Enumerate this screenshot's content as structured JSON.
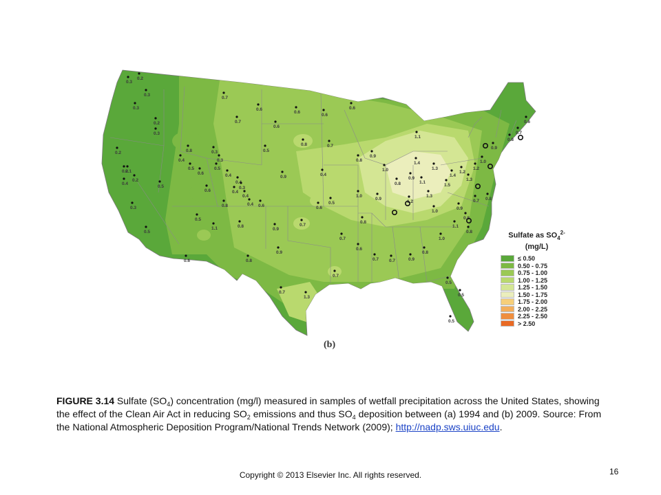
{
  "legend": {
    "title": "Sulfate as SO",
    "title_sup": "2-",
    "title_sub": "4",
    "units": "(mg/L)",
    "items": [
      {
        "label": "≤ 0.50",
        "color": "#5aa83a"
      },
      {
        "label": "0.50 - 0.75",
        "color": "#7db944"
      },
      {
        "label": "0.75 - 1.00",
        "color": "#9bc955"
      },
      {
        "label": "1.00 - 1.25",
        "color": "#b9d96e"
      },
      {
        "label": "1.25 - 1.50",
        "color": "#d4e694"
      },
      {
        "label": "1.50 - 1.75",
        "color": "#ebeebc"
      },
      {
        "label": "1.75 - 2.00",
        "color": "#f6cf7a"
      },
      {
        "label": "2.00 - 2.25",
        "color": "#f3ae5b"
      },
      {
        "label": "2.25 - 2.50",
        "color": "#ef8e3e"
      },
      {
        "label": "> 2.50",
        "color": "#e96a24"
      }
    ]
  },
  "panel_label": "(b)",
  "caption": {
    "label": "FIGURE 3.14",
    "line1_a": " Sulfate (SO",
    "line1_sub": "4",
    "line1_b": ") concentration (mg/l) measured in samples of wetfall precipitation across the United States, showing the effect of the Clean Air Act in reducing SO",
    "line2_sub": "2",
    "line2_b": " emissions and thus SO",
    "line3_sub": "4",
    "line3_b": " deposition between (a) 1994 and (b) 2009. Source: From the National Atmospheric Deposition Program/National Trends Network (2009); ",
    "link": "http://nadp.sws.uiuc.edu",
    "end": "."
  },
  "copyright": "Copyright © 2013 Elsevier Inc. All rights reserved.",
  "page_number": "16",
  "map": {
    "site_values": [
      "0.3",
      "0.2",
      "0.3",
      "0.3",
      "0.7",
      "0.6",
      "0.6",
      "0.2",
      "0.3",
      "0.2",
      "0.2",
      "0.2",
      "0.7",
      "0.6",
      "0.6",
      "0.6",
      "0.5",
      "0.8",
      "0.5",
      "0.3",
      "0.3",
      "0.4",
      "0.5",
      "0.6",
      "0.6",
      "0.8",
      "0.7",
      "0.1",
      "0.4",
      "0.3",
      "0.5",
      "0.4",
      "0.4",
      "0.3",
      "0.4",
      "0.4",
      "0.4",
      "0.6",
      "0.9",
      "0.4",
      "0.8",
      "0.9",
      "1.0",
      "0.8",
      "0.9",
      "1.1",
      "1.3",
      "1.4",
      "1.3",
      "1.4",
      "1.2",
      "1.5",
      "1.3",
      "1.2",
      "1.0",
      "0.9",
      "0.8",
      "0.7",
      "0.6",
      "1.1",
      "0.5",
      "1.1",
      "0.8",
      "0.8",
      "0.9",
      "0.7",
      "0.6",
      "0.5",
      "1.0",
      "0.9",
      "0.8",
      "0.7",
      "0.6",
      "0.7",
      "0.7",
      "0.9",
      "0.8",
      "1.0",
      "1.1",
      "0.8",
      "0.7",
      "0.8",
      "0.5",
      "0.6",
      "0.8",
      "0.9",
      "0.7",
      "0.7",
      "1.3",
      "1.2",
      "1.0",
      "0.9",
      "0.8",
      "0.5",
      "0.5",
      "0.5"
    ]
  }
}
